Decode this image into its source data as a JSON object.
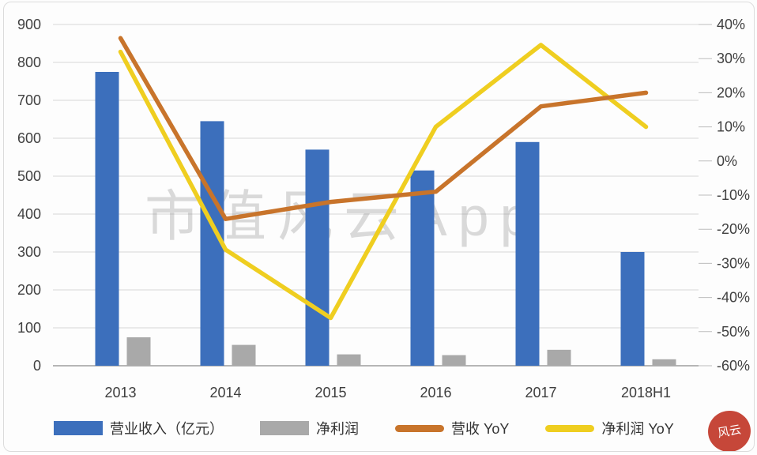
{
  "watermark": "市值风云App",
  "seal": {
    "text": "风云"
  },
  "colors": {
    "background": "#FDFDFD",
    "grid": "#D6D6D6",
    "baseline": "#9E9E9E",
    "tick_dash": "#BDBDBD",
    "axis_text": "#404040",
    "watermark_text": "#8A8A8A",
    "seal_red": "#C23A2B"
  },
  "chart_data": {
    "type": "bar",
    "subtype": "clustered-bars-with-lines-dual-axis",
    "title": "",
    "categories": [
      "2013",
      "2014",
      "2015",
      "2016",
      "2017",
      "2018H1"
    ],
    "bar_series": [
      {
        "name": "营业收入（亿元）",
        "axis": "left",
        "color": "#3C6FBC",
        "values": [
          775,
          645,
          570,
          515,
          590,
          300
        ]
      },
      {
        "name": "净利润",
        "axis": "left",
        "color": "#A9A9A9",
        "values": [
          75,
          55,
          30,
          28,
          42,
          17
        ]
      }
    ],
    "line_series": [
      {
        "name": "营收 YoY",
        "axis": "right",
        "color": "#C8742B",
        "values_pct": [
          36,
          -17,
          -12,
          -9,
          16,
          20
        ]
      },
      {
        "name": "净利润 YoY",
        "axis": "right",
        "color": "#EFCE20",
        "values_pct": [
          32,
          -26,
          -46,
          10,
          34,
          10
        ]
      }
    ],
    "left_axis": {
      "min": 0,
      "max": 900,
      "step": 100,
      "tick_labels": [
        "900",
        "800",
        "700",
        "600",
        "500",
        "400",
        "300",
        "200",
        "100",
        "0"
      ]
    },
    "right_axis": {
      "min": -60,
      "max": 40,
      "step": 10,
      "tick_labels": [
        "40%",
        "30%",
        "20%",
        "10%",
        "0%",
        "-10%",
        "-20%",
        "-30%",
        "-40%",
        "-50%",
        "-60%"
      ]
    },
    "grid": true,
    "legend_position": "bottom"
  }
}
